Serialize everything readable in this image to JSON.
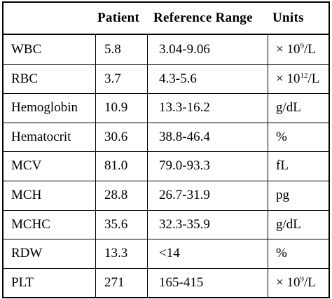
{
  "header": {
    "patient": "Patient",
    "reference_range": "Reference Range",
    "units": "Units"
  },
  "rows": [
    {
      "test": "WBC",
      "patient": "5.8",
      "range": "3.04-9.06",
      "unit_base": "× 10",
      "unit_exp": "9",
      "unit_tail": "/L"
    },
    {
      "test": "RBC",
      "patient": "3.7",
      "range": " 4.3-5.6",
      "unit_base": "× 10",
      "unit_exp": "12",
      "unit_tail": "/L"
    },
    {
      "test": "Hemoglobin",
      "patient": "10.9",
      "range": "13.3-16.2",
      "unit_base": "g/dL",
      "unit_exp": "",
      "unit_tail": ""
    },
    {
      "test": "Hematocrit",
      "patient": "30.6",
      "range": "38.8-46.4",
      "unit_base": "%",
      "unit_exp": "",
      "unit_tail": ""
    },
    {
      "test": "MCV",
      "patient": "81.0",
      "range": "79.0-93.3",
      "unit_base": "fL",
      "unit_exp": "",
      "unit_tail": ""
    },
    {
      "test": "MCH",
      "patient": "28.8",
      "range": "26.7-31.9",
      "unit_base": "pg",
      "unit_exp": "",
      "unit_tail": ""
    },
    {
      "test": "MCHC",
      "patient": "35.6",
      "range": "32.3-35.9",
      "unit_base": "g/dL",
      "unit_exp": "",
      "unit_tail": ""
    },
    {
      "test": "RDW",
      "patient": "13.3",
      "range": "<14",
      "unit_base": "%",
      "unit_exp": "",
      "unit_tail": ""
    },
    {
      "test": "PLT",
      "patient": "271",
      "range": "165-415",
      "unit_base": "× 10",
      "unit_exp": "9",
      "unit_tail": "/L"
    }
  ]
}
